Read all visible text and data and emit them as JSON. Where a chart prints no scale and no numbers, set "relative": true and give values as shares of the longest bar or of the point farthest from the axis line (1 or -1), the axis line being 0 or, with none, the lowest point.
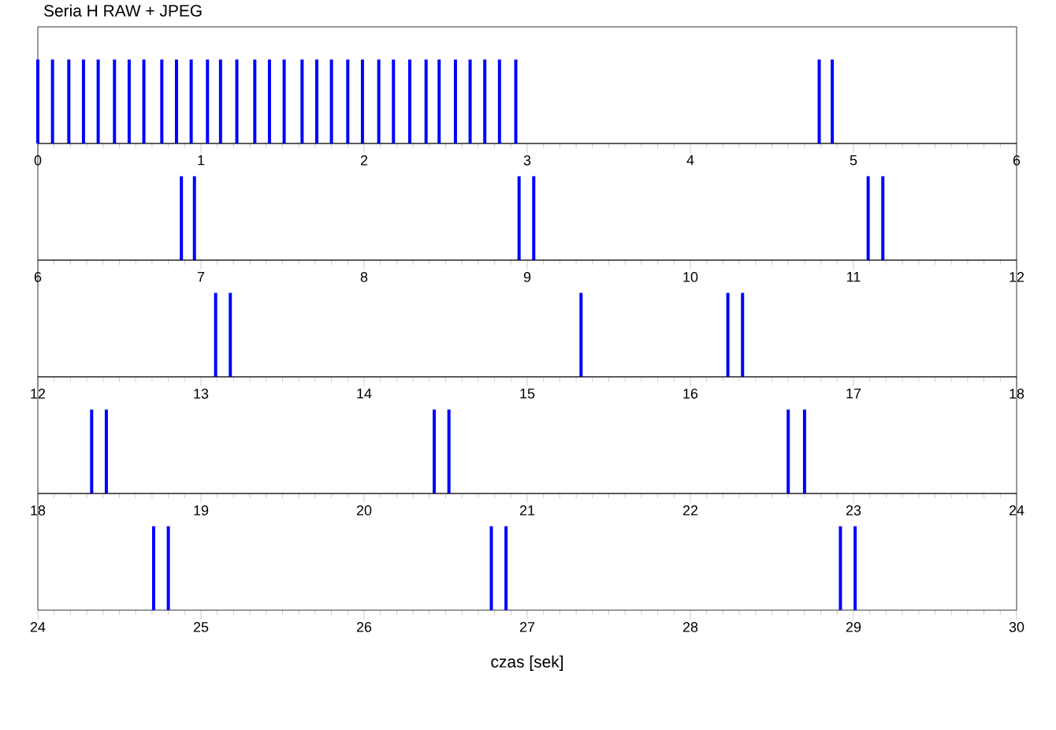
{
  "chart_data": [
    {
      "type": "bar",
      "title": "Seria H RAW + JPEG",
      "relative": true,
      "tick_labels": "x",
      "color": "#0000ff",
      "xlim": [
        0,
        6
      ],
      "xticks": [
        0,
        1,
        2,
        3,
        4,
        5,
        6
      ],
      "x": [
        0.0,
        0.09,
        0.19,
        0.28,
        0.37,
        0.47,
        0.56,
        0.65,
        0.76,
        0.85,
        0.94,
        1.04,
        1.12,
        1.22,
        1.33,
        1.42,
        1.51,
        1.62,
        1.71,
        1.8,
        1.9,
        1.99,
        2.09,
        2.18,
        2.28,
        2.38,
        2.46,
        2.56,
        2.65,
        2.74,
        2.83,
        2.93,
        4.79,
        4.87
      ],
      "values": [
        1,
        1,
        1,
        1,
        1,
        1,
        1,
        1,
        1,
        1,
        1,
        1,
        1,
        1,
        1,
        1,
        1,
        1,
        1,
        1,
        1,
        1,
        1,
        1,
        1,
        1,
        1,
        1,
        1,
        1,
        1,
        1,
        1,
        1
      ]
    },
    {
      "type": "bar",
      "relative": true,
      "tick_labels": "x",
      "color": "#0000ff",
      "xlim": [
        6,
        12
      ],
      "xticks": [
        6,
        7,
        8,
        9,
        10,
        11,
        12
      ],
      "x": [
        6.88,
        6.96,
        8.95,
        9.04,
        11.09,
        11.18
      ],
      "values": [
        1,
        1,
        1,
        1,
        1,
        1
      ]
    },
    {
      "type": "bar",
      "relative": true,
      "tick_labels": "x",
      "color": "#0000ff",
      "xlim": [
        12,
        18
      ],
      "xticks": [
        12,
        13,
        14,
        15,
        16,
        17,
        18
      ],
      "x": [
        13.09,
        13.18,
        15.33,
        16.23,
        16.32
      ],
      "values": [
        1,
        1,
        1,
        1,
        1
      ]
    },
    {
      "type": "bar",
      "relative": true,
      "tick_labels": "x",
      "color": "#0000ff",
      "xlim": [
        18,
        24
      ],
      "xticks": [
        18,
        19,
        20,
        21,
        22,
        23,
        24
      ],
      "x": [
        18.33,
        18.42,
        20.43,
        20.52,
        22.6,
        22.7
      ],
      "values": [
        1,
        1,
        1,
        1,
        1,
        1
      ]
    },
    {
      "type": "bar",
      "relative": true,
      "tick_labels": "x",
      "color": "#0000ff",
      "xlabel": "czas [sek]",
      "xlim": [
        24,
        30
      ],
      "xticks": [
        24,
        25,
        26,
        27,
        28,
        29,
        30
      ],
      "x": [
        24.71,
        24.8,
        26.78,
        26.87,
        28.92,
        29.01
      ],
      "values": [
        1,
        1,
        1,
        1,
        1,
        1
      ]
    }
  ]
}
